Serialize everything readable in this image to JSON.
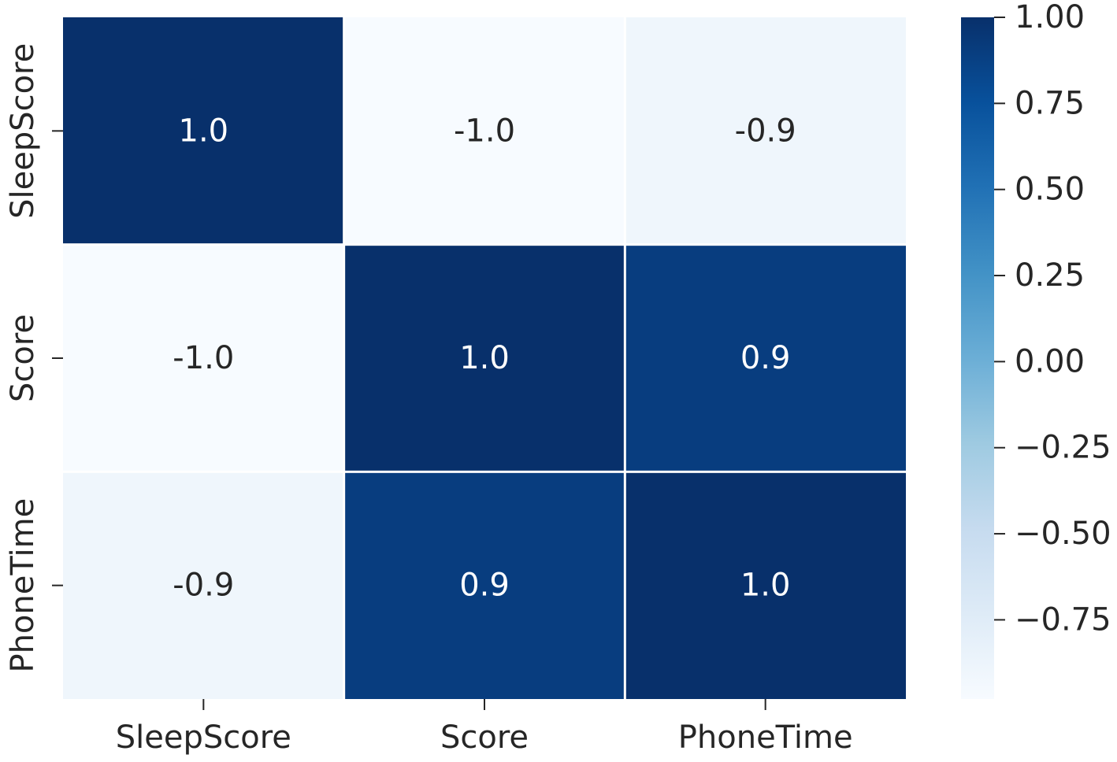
{
  "chart_data": {
    "type": "heatmap",
    "x_categories": [
      "SleepScore",
      "Score",
      "PhoneTime"
    ],
    "y_categories": [
      "SleepScore",
      "Score",
      "PhoneTime"
    ],
    "values": [
      [
        1.0,
        -1.0,
        -0.9
      ],
      [
        -1.0,
        1.0,
        0.9
      ],
      [
        -0.9,
        0.9,
        1.0
      ]
    ],
    "value_labels": [
      [
        "1.0",
        "-1.0",
        "-0.9"
      ],
      [
        "-1.0",
        "1.0",
        "0.9"
      ],
      [
        "-0.9",
        "0.9",
        "1.0"
      ]
    ],
    "title": "",
    "xlabel": "",
    "ylabel": "",
    "colormap": "Blues",
    "vmin": -0.98,
    "vmax": 1.0,
    "colorbar_ticks": [
      1.0,
      0.75,
      0.5,
      0.25,
      0.0,
      -0.25,
      -0.5,
      -0.75
    ],
    "colorbar_tick_labels": [
      "1.00",
      "0.75",
      "0.50",
      "0.25",
      "0.00",
      "−0.25",
      "−0.50",
      "−0.75"
    ],
    "colorbar_position": "right",
    "grid": false,
    "cell_separator_color": "#ffffff"
  }
}
